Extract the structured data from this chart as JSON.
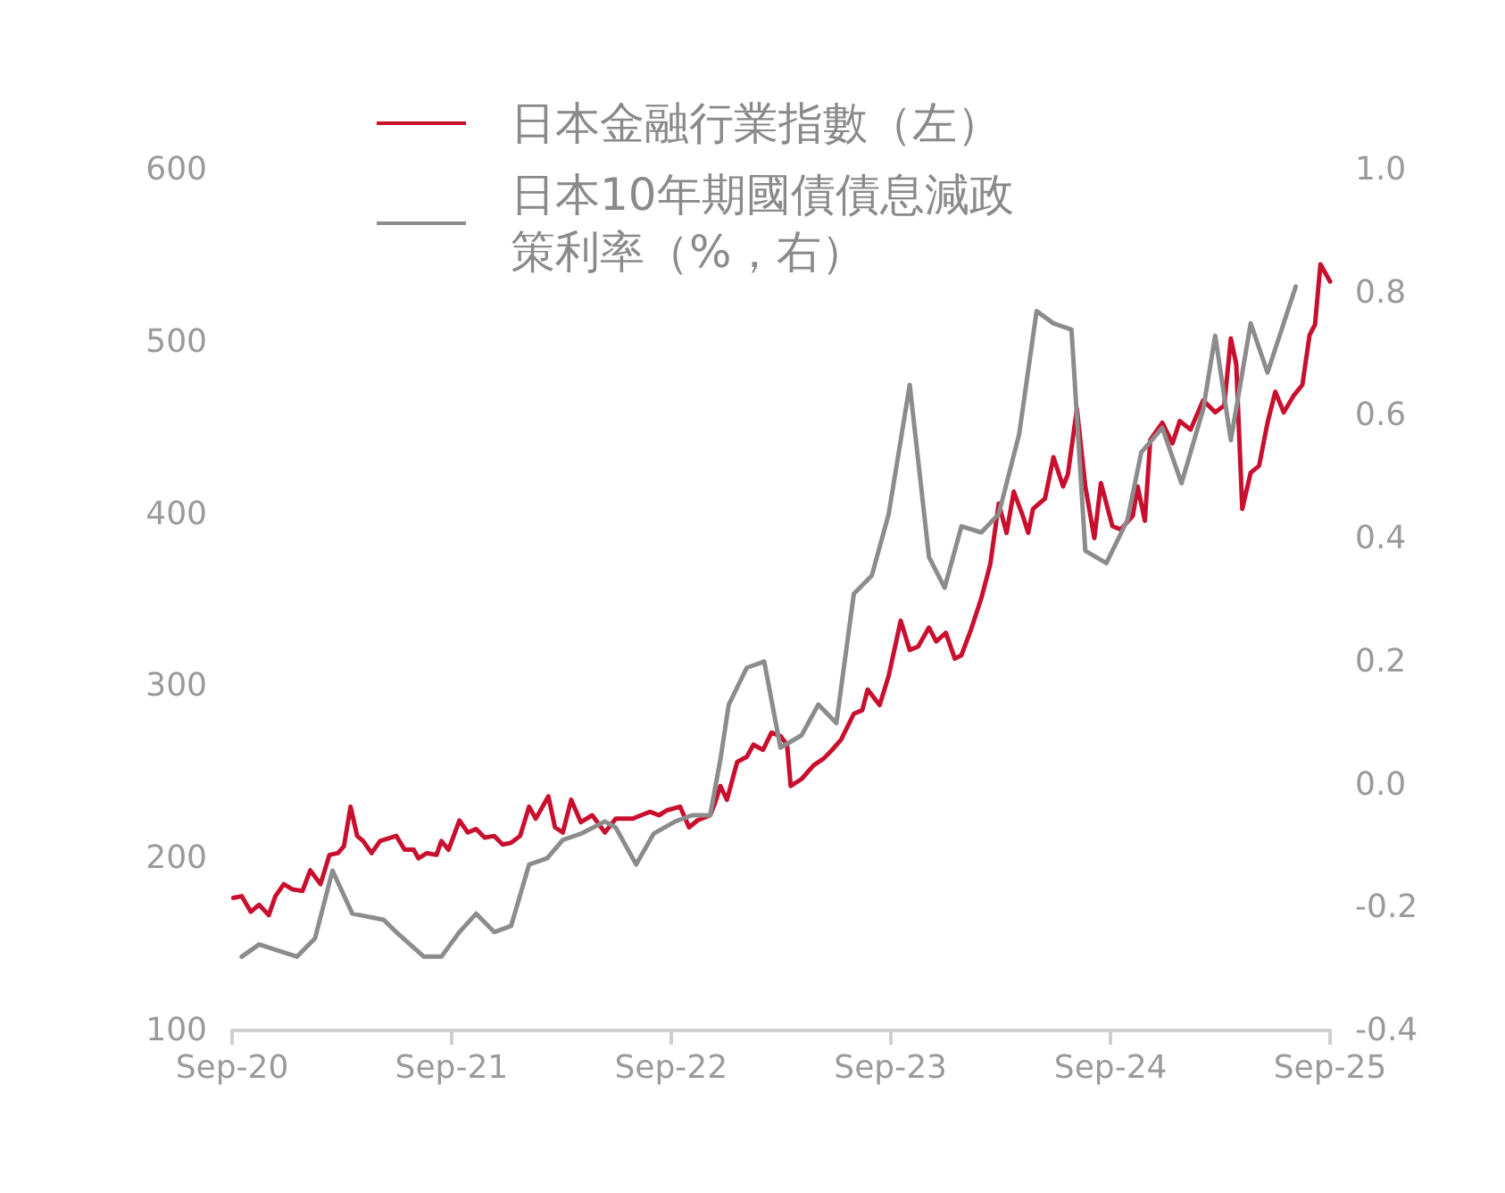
{
  "chart_data": {
    "type": "line",
    "legend": "top",
    "marker": "none",
    "grid": false,
    "xlim": [
      "2020-09",
      "2025-09"
    ],
    "xticks": [
      {
        "value": "2020-09",
        "label": "Sep-20"
      },
      {
        "value": "2021-09",
        "label": "Sep-21"
      },
      {
        "value": "2022-09",
        "label": "Sep-22"
      },
      {
        "value": "2023-09",
        "label": "Sep-23"
      },
      {
        "value": "2024-09",
        "label": "Sep-24"
      },
      {
        "value": "2025-09",
        "label": "Sep-25"
      }
    ],
    "ylim": [
      100,
      600
    ],
    "yticks": [
      100,
      200,
      300,
      400,
      500,
      600
    ],
    "y2lim": [
      -0.4,
      1.0
    ],
    "y2ticks": [
      {
        "value": -0.4,
        "label": "-0.4"
      },
      {
        "value": -0.2,
        "label": "-0.2"
      },
      {
        "value": 0,
        "label": "0.0"
      },
      {
        "value": 0.2,
        "label": "0.2"
      },
      {
        "value": 0.4,
        "label": "0.4"
      },
      {
        "value": 0.6,
        "label": "0.6"
      },
      {
        "value": 0.8,
        "label": "0.8"
      },
      {
        "value": 1.0,
        "label": "1.0"
      }
    ],
    "series": [
      {
        "name": "日本金融行業指數（左）",
        "color": "#c8102e",
        "x": [
          "2020-09-03",
          "2020-09-17",
          "2020-10-02",
          "2020-10-16",
          "2020-11-01",
          "2020-11-12",
          "2020-11-26",
          "2020-12-10",
          "2020-12-27",
          "2021-01-09",
          "2021-01-26",
          "2021-02-10",
          "2021-02-24",
          "2021-03-06",
          "2021-03-17",
          "2021-03-28",
          "2021-04-07",
          "2021-04-21",
          "2021-05-05",
          "2021-06-01",
          "2021-06-15",
          "2021-06-30",
          "2021-07-08",
          "2021-07-22",
          "2021-08-07",
          "2021-08-15",
          "2021-08-27",
          "2021-09-14",
          "2021-09-28",
          "2021-10-12",
          "2021-10-26",
          "2021-11-11",
          "2021-11-25",
          "2021-12-09",
          "2021-12-24",
          "2022-01-08",
          "2022-01-19",
          "2022-02-09",
          "2022-02-20",
          "2022-03-05",
          "2022-03-19",
          "2022-04-04",
          "2022-04-23",
          "2022-05-14",
          "2022-06-01",
          "2022-06-29",
          "2022-07-13",
          "2022-07-28",
          "2022-08-12",
          "2022-08-26",
          "2022-09-16",
          "2022-10-01",
          "2022-10-15",
          "2022-11-05",
          "2022-11-13",
          "2022-11-22",
          "2022-12-03",
          "2022-12-20",
          "2023-01-05",
          "2023-01-16",
          "2023-02-01",
          "2023-02-15",
          "2023-03-02",
          "2023-03-13",
          "2023-03-19",
          "2023-04-06",
          "2023-04-26",
          "2023-05-13",
          "2023-05-27",
          "2023-06-11",
          "2023-07-02",
          "2023-07-16",
          "2023-07-25",
          "2023-08-14",
          "2023-08-29",
          "2023-09-18",
          "2023-10-03",
          "2023-10-17",
          "2023-11-04",
          "2023-11-16",
          "2023-12-02",
          "2023-12-17",
          "2023-12-28",
          "2024-01-13",
          "2024-01-30",
          "2024-02-14",
          "2024-02-28",
          "2024-03-12",
          "2024-03-24",
          "2024-04-08",
          "2024-04-17",
          "2024-04-25",
          "2024-05-15",
          "2024-05-29",
          "2024-06-14",
          "2024-06-22",
          "2024-07-07",
          "2024-07-21",
          "2024-08-05",
          "2024-08-16",
          "2024-09-04",
          "2024-09-18",
          "2024-10-08",
          "2024-10-16",
          "2024-10-28",
          "2024-11-06",
          "2024-11-26",
          "2024-12-13",
          "2024-12-25",
          "2025-01-12",
          "2025-02-02",
          "2025-02-22",
          "2025-03-09",
          "2025-03-20",
          "2025-03-29",
          "2025-04-08",
          "2025-04-22",
          "2025-05-06",
          "2025-05-20",
          "2025-06-02",
          "2025-06-16",
          "2025-07-03",
          "2025-07-17",
          "2025-07-29",
          "2025-08-07",
          "2025-08-16",
          "2025-09-01"
        ],
        "values": [
          177,
          178,
          169,
          173,
          167,
          178,
          185,
          182,
          181,
          193,
          185,
          202,
          203,
          207,
          230,
          213,
          210,
          203,
          210,
          213,
          205,
          205,
          200,
          203,
          202,
          210,
          205,
          222,
          215,
          217,
          212,
          213,
          208,
          209,
          213,
          230,
          223,
          236,
          218,
          215,
          234,
          221,
          225,
          215,
          223,
          223,
          225,
          227,
          225,
          228,
          230,
          218,
          222,
          225,
          232,
          242,
          234,
          256,
          259,
          266,
          263,
          273,
          271,
          266,
          242,
          246,
          254,
          258,
          263,
          269,
          284,
          286,
          298,
          289,
          306,
          338,
          321,
          323,
          334,
          326,
          331,
          316,
          318,
          333,
          351,
          371,
          406,
          389,
          413,
          399,
          389,
          403,
          409,
          433,
          416,
          423,
          461,
          416,
          386,
          418,
          393,
          391,
          399,
          416,
          396,
          443,
          453,
          441,
          454,
          449,
          466,
          459,
          463,
          502,
          487,
          403,
          424,
          428,
          453,
          471,
          459,
          469,
          475,
          504,
          510,
          545,
          535
        ]
      },
      {
        "name": "日本10年期國債債息減政策利率（%，右）",
        "color": "#8c8c8c",
        "axis": "y2",
        "x": [
          "2020-09-17",
          "2020-10-16",
          "2020-12-18",
          "2021-01-17",
          "2021-02-15",
          "2021-03-20",
          "2021-05-11",
          "2021-06-01",
          "2021-06-24",
          "2021-07-17",
          "2021-08-15",
          "2021-09-14",
          "2021-10-12",
          "2021-11-11",
          "2021-12-09",
          "2022-01-08",
          "2022-02-07",
          "2022-03-05",
          "2022-04-04",
          "2022-05-14",
          "2022-06-01",
          "2022-07-05",
          "2022-08-03",
          "2022-09-08",
          "2022-10-06",
          "2022-11-05",
          "2022-11-22",
          "2022-12-06",
          "2023-01-05",
          "2023-02-03",
          "2023-03-02",
          "2023-04-06",
          "2023-05-04",
          "2023-06-03",
          "2023-07-02",
          "2023-08-01",
          "2023-08-29",
          "2023-10-03",
          "2023-11-04",
          "2023-11-30",
          "2023-12-28",
          "2024-01-30",
          "2024-02-28",
          "2024-04-02",
          "2024-05-01",
          "2024-05-29",
          "2024-06-28",
          "2024-07-21",
          "2024-08-25",
          "2024-09-29",
          "2024-10-22",
          "2024-11-26",
          "2024-12-28",
          "2025-02-02",
          "2025-02-22",
          "2025-03-20",
          "2025-04-22",
          "2025-05-20",
          "2025-07-06"
        ],
        "values": [
          -0.28,
          -0.26,
          -0.28,
          -0.25,
          -0.14,
          -0.21,
          -0.22,
          -0.24,
          -0.26,
          -0.28,
          -0.28,
          -0.24,
          -0.21,
          -0.24,
          -0.23,
          -0.13,
          -0.12,
          -0.09,
          -0.08,
          -0.06,
          -0.07,
          -0.13,
          -0.08,
          -0.06,
          -0.05,
          -0.05,
          0.04,
          0.13,
          0.19,
          0.2,
          0.06,
          0.08,
          0.13,
          0.1,
          0.31,
          0.34,
          0.44,
          0.65,
          0.37,
          0.32,
          0.42,
          0.41,
          0.44,
          0.57,
          0.77,
          0.75,
          0.74,
          0.38,
          0.36,
          0.43,
          0.54,
          0.58,
          0.49,
          0.61,
          0.73,
          0.56,
          0.75,
          0.67,
          0.81
        ]
      }
    ]
  }
}
